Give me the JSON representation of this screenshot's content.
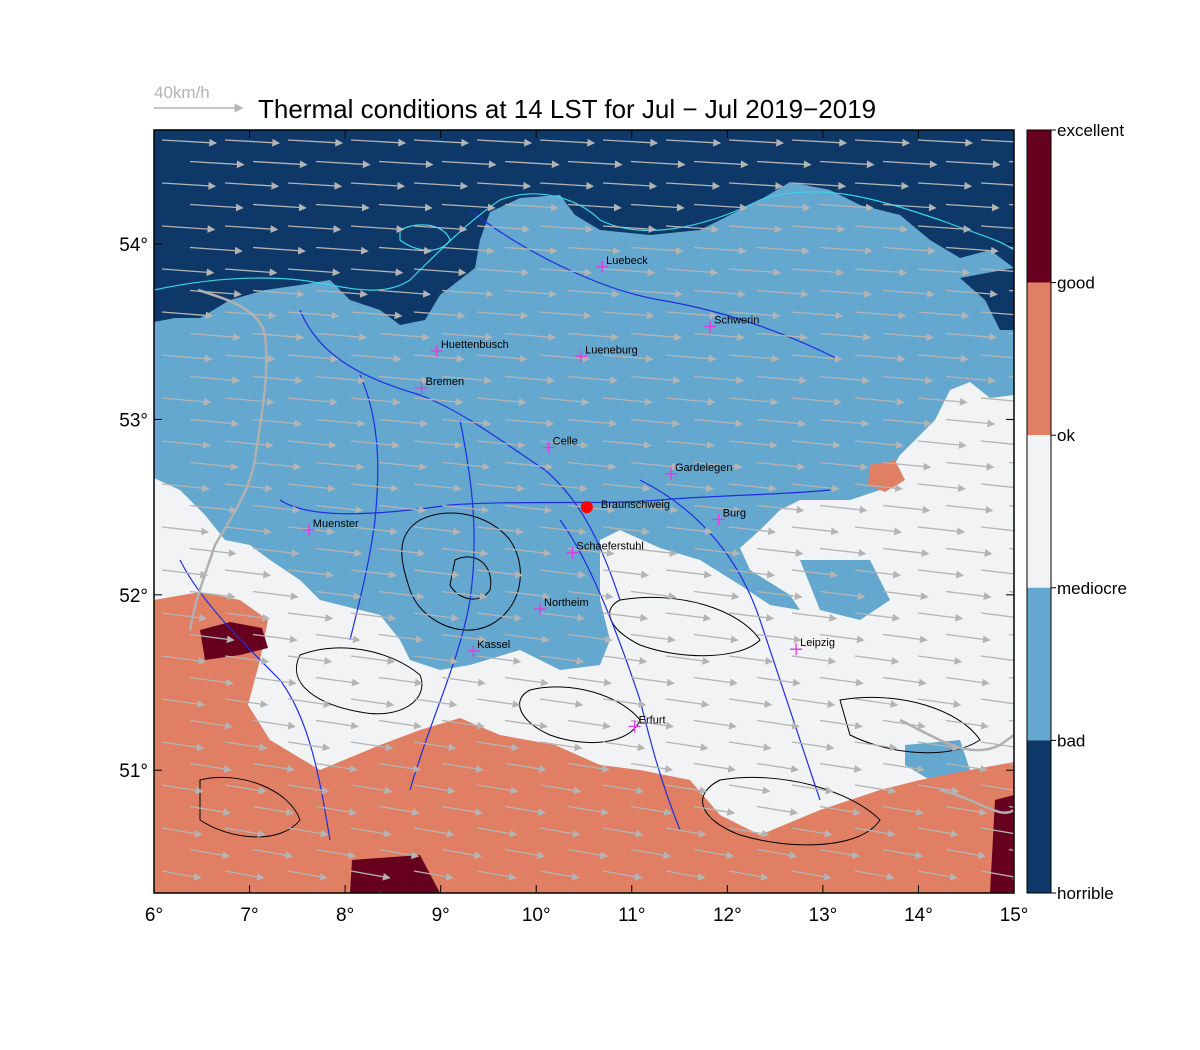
{
  "title": "Thermal conditions at 14 LST for Jul − Jul  2019−2019",
  "wind_reference": {
    "label": "40km/h",
    "color": "#b4b4b4"
  },
  "x_ticks": [
    "6°",
    "7°",
    "8°",
    "9°",
    "10°",
    "11°",
    "12°",
    "13°",
    "14°",
    "15°"
  ],
  "y_ticks": [
    "54°",
    "53°",
    "52°",
    "51°"
  ],
  "extent": {
    "lon": [
      6,
      15
    ],
    "lat": [
      50.3,
      54.65
    ]
  },
  "colorbar": {
    "labels": [
      "excellent",
      "good",
      "ok",
      "mediocre",
      "bad",
      "horrible"
    ],
    "colors": [
      "#67001f",
      "#e07f63",
      "#f2f3f4",
      "#64a7cf",
      "#0d3867"
    ]
  },
  "palette": {
    "horrible": "#0d3867",
    "bad": "#64a7cf",
    "mediocre": "#f2f3f4",
    "ok": "#e07f63",
    "good": "#67001f",
    "coast": "#38d6e8",
    "rivers": "#1f2ee0",
    "borders": "#b0b0b0",
    "terrain": "#000000",
    "wind": "#b4b4b4",
    "city_marker": "#e03ce0",
    "home_marker": "#ff0000"
  },
  "cities": [
    {
      "name": "Luebeck",
      "lon": 10.69,
      "lat": 53.87
    },
    {
      "name": "Schwerin",
      "lon": 11.82,
      "lat": 53.53
    },
    {
      "name": "Huettenbusch",
      "lon": 8.96,
      "lat": 53.39
    },
    {
      "name": "Lueneburg",
      "lon": 10.47,
      "lat": 53.36
    },
    {
      "name": "Bremen",
      "lon": 8.8,
      "lat": 53.18
    },
    {
      "name": "Celle",
      "lon": 10.13,
      "lat": 52.84
    },
    {
      "name": "Gardelegen",
      "lon": 11.41,
      "lat": 52.69
    },
    {
      "name": "Burg",
      "lon": 11.91,
      "lat": 52.43
    },
    {
      "name": "Muenster",
      "lon": 7.62,
      "lat": 52.37
    },
    {
      "name": "Schaeferstuhl",
      "lon": 10.38,
      "lat": 52.24
    },
    {
      "name": "Northeim",
      "lon": 10.04,
      "lat": 51.92
    },
    {
      "name": "Kassel",
      "lon": 9.34,
      "lat": 51.68
    },
    {
      "name": "Leipzig",
      "lon": 12.72,
      "lat": 51.69
    },
    {
      "name": "Erfurt",
      "lon": 11.03,
      "lat": 51.25
    }
  ],
  "home": {
    "name": "Braunschweig",
    "lon": 10.53,
    "lat": 52.5
  }
}
